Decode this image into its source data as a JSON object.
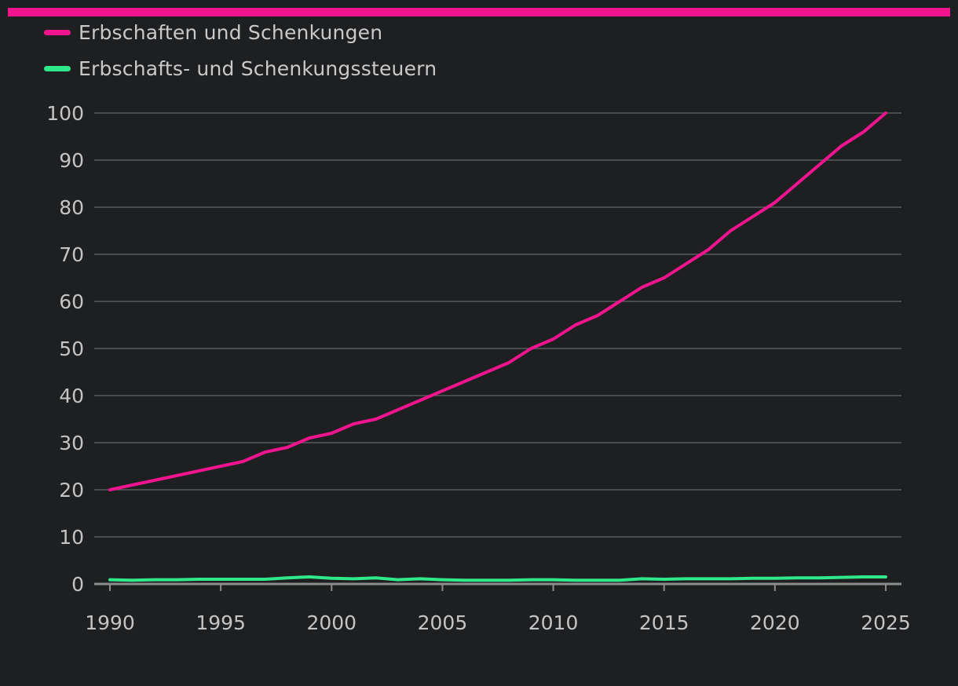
{
  "colors": {
    "background": "#1e1f21",
    "accent": "#f0158e",
    "series_1": "#f0158e",
    "series_2": "#2fe88a",
    "grid": "#5a5b5d",
    "axis": "#8c8c8c",
    "text": "#c4c4c4"
  },
  "chart_data": {
    "type": "line",
    "title": "",
    "xlabel": "",
    "ylabel": "",
    "legend_position": "top-left",
    "grid": true,
    "xlim": [
      1990,
      2025
    ],
    "ylim": [
      0,
      100
    ],
    "x_ticks": [
      1990,
      1995,
      2000,
      2005,
      2010,
      2015,
      2020,
      2025
    ],
    "y_ticks": [
      0,
      10,
      20,
      30,
      40,
      50,
      60,
      70,
      80,
      90,
      100
    ],
    "x": [
      1990,
      1991,
      1992,
      1993,
      1994,
      1995,
      1996,
      1997,
      1998,
      1999,
      2000,
      2001,
      2002,
      2003,
      2004,
      2005,
      2006,
      2007,
      2008,
      2009,
      2010,
      2011,
      2012,
      2013,
      2014,
      2015,
      2016,
      2017,
      2018,
      2019,
      2020,
      2021,
      2022,
      2023,
      2024,
      2025
    ],
    "series": [
      {
        "name": "Erbschaften und Schenkungen",
        "color": "#f0158e",
        "values": [
          20,
          21,
          22,
          23,
          24,
          25,
          26,
          28,
          29,
          31,
          32,
          34,
          35,
          37,
          39,
          41,
          43,
          45,
          47,
          50,
          52,
          55,
          57,
          60,
          63,
          65,
          68,
          71,
          75,
          78,
          81,
          85,
          89,
          93,
          96,
          100
        ]
      },
      {
        "name": "Erbschafts- und Schenkungssteuern",
        "color": "#2fe88a",
        "values": [
          0.9,
          0.8,
          0.9,
          0.9,
          1.0,
          1.0,
          1.0,
          1.0,
          1.3,
          1.5,
          1.2,
          1.1,
          1.3,
          0.9,
          1.1,
          0.9,
          0.8,
          0.8,
          0.8,
          0.9,
          0.9,
          0.8,
          0.8,
          0.8,
          1.1,
          1.0,
          1.1,
          1.1,
          1.1,
          1.2,
          1.2,
          1.3,
          1.3,
          1.4,
          1.5,
          1.5
        ]
      }
    ]
  }
}
